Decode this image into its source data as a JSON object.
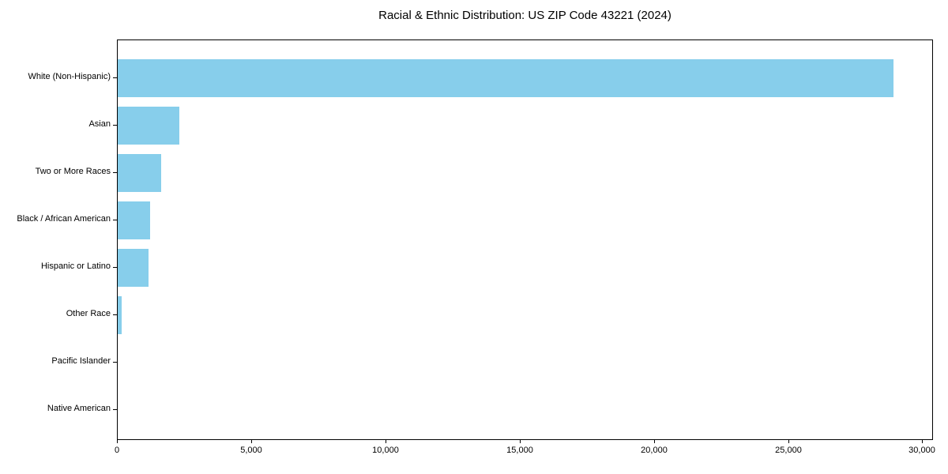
{
  "chart_data": {
    "type": "bar",
    "orientation": "horizontal",
    "title": "Racial & Ethnic Distribution: US ZIP Code 43221 (2024)",
    "categories": [
      "White (Non-Hispanic)",
      "Asian",
      "Two or More Races",
      "Black / African American",
      "Hispanic or Latino",
      "Other Race",
      "Pacific Islander",
      "Native American"
    ],
    "values": [
      28900,
      2300,
      1620,
      1200,
      1150,
      150,
      0,
      0
    ],
    "xlabel": "",
    "ylabel": "",
    "xlim": [
      0,
      30400
    ],
    "x_ticks": [
      0,
      5000,
      10000,
      15000,
      20000,
      25000,
      30000
    ],
    "x_tick_labels": [
      "0",
      "5,000",
      "10,000",
      "15,000",
      "20,000",
      "25,000",
      "30,000"
    ],
    "bar_color": "#87CEEB",
    "axis_color": "#000000",
    "background_color": "#FFFFFF",
    "grid": false,
    "legend": null
  }
}
